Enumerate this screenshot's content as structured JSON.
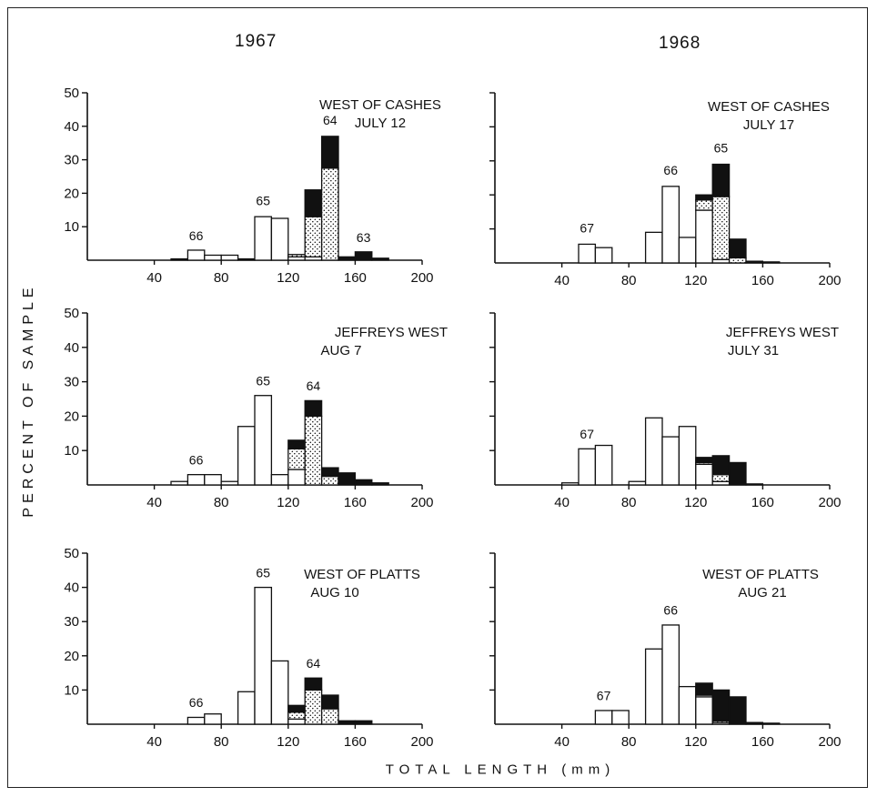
{
  "figure": {
    "ylabel": "PERCENT OF SAMPLE",
    "xlabel": "TOTAL LENGTH (mm)",
    "columns": [
      "1967",
      "1968"
    ]
  },
  "chart_data": [
    {
      "type": "bar",
      "stacked": true,
      "year": "1967",
      "label_line1": "WEST OF CASHES",
      "label_line2": "JULY 12",
      "x_ticks": [
        40,
        80,
        120,
        160,
        200
      ],
      "y_ticks": [
        10,
        20,
        30,
        40,
        50
      ],
      "xlim": [
        0,
        200
      ],
      "ylim": [
        0,
        50
      ],
      "bars": [
        {
          "x": 50,
          "open": 0,
          "dotted": 0,
          "solid": 0.4
        },
        {
          "x": 60,
          "open": 3,
          "dotted": 0,
          "solid": 0
        },
        {
          "x": 70,
          "open": 1.5,
          "dotted": 0,
          "solid": 0
        },
        {
          "x": 80,
          "open": 1.5,
          "dotted": 0,
          "solid": 0
        },
        {
          "x": 90,
          "open": 0,
          "dotted": 0,
          "solid": 0.4
        },
        {
          "x": 100,
          "open": 13,
          "dotted": 0,
          "solid": 0
        },
        {
          "x": 110,
          "open": 12.5,
          "dotted": 0,
          "solid": 0
        },
        {
          "x": 120,
          "open": 1,
          "dotted": 0.7,
          "solid": 0
        },
        {
          "x": 130,
          "open": 1,
          "dotted": 12,
          "solid": 8
        },
        {
          "x": 140,
          "open": 0,
          "dotted": 27.5,
          "solid": 9.5
        },
        {
          "x": 150,
          "open": 0,
          "dotted": 0,
          "solid": 1
        },
        {
          "x": 160,
          "open": 0,
          "dotted": 0,
          "solid": 2.5
        },
        {
          "x": 170,
          "open": 0,
          "dotted": 0,
          "solid": 0.6
        }
      ],
      "annotations": [
        {
          "text": "66",
          "x": 65,
          "y": 6
        },
        {
          "text": "65",
          "x": 105,
          "y": 16.5
        },
        {
          "text": "64",
          "x": 145,
          "y": 40.5
        },
        {
          "text": "63",
          "x": 165,
          "y": 5.5
        }
      ]
    },
    {
      "type": "bar",
      "stacked": true,
      "year": "1968",
      "label_line1": "WEST OF CASHES",
      "label_line2": "JULY 17",
      "x_ticks": [
        40,
        80,
        120,
        160,
        200
      ],
      "y_ticks": [],
      "xlim": [
        0,
        200
      ],
      "ylim": [
        0,
        50
      ],
      "bars": [
        {
          "x": 50,
          "open": 5.5,
          "dotted": 0,
          "solid": 0
        },
        {
          "x": 60,
          "open": 4.5,
          "dotted": 0,
          "solid": 0
        },
        {
          "x": 90,
          "open": 9,
          "dotted": 0,
          "solid": 0
        },
        {
          "x": 100,
          "open": 22.5,
          "dotted": 0,
          "solid": 0
        },
        {
          "x": 110,
          "open": 7.5,
          "dotted": 0,
          "solid": 0
        },
        {
          "x": 120,
          "open": 15.5,
          "dotted": 3,
          "solid": 1.5
        },
        {
          "x": 130,
          "open": 1,
          "dotted": 18.5,
          "solid": 9.5
        },
        {
          "x": 140,
          "open": 0,
          "dotted": 1.5,
          "solid": 5.5
        },
        {
          "x": 150,
          "open": 0,
          "dotted": 0,
          "solid": 0.5
        },
        {
          "x": 160,
          "open": 0,
          "dotted": 0,
          "solid": 0.3
        }
      ],
      "annotations": [
        {
          "text": "67",
          "x": 55,
          "y": 9
        },
        {
          "text": "66",
          "x": 105,
          "y": 26
        },
        {
          "text": "65",
          "x": 135,
          "y": 32.5
        }
      ]
    },
    {
      "type": "bar",
      "stacked": true,
      "year": "1967",
      "label_line1": "JEFFREYS WEST",
      "label_line2": "AUG 7",
      "x_ticks": [
        40,
        80,
        120,
        160,
        200
      ],
      "y_ticks": [
        10,
        20,
        30,
        40,
        50
      ],
      "xlim": [
        0,
        200
      ],
      "ylim": [
        0,
        50
      ],
      "bars": [
        {
          "x": 50,
          "open": 1,
          "dotted": 0,
          "solid": 0
        },
        {
          "x": 60,
          "open": 3,
          "dotted": 0,
          "solid": 0
        },
        {
          "x": 70,
          "open": 3,
          "dotted": 0,
          "solid": 0
        },
        {
          "x": 80,
          "open": 1,
          "dotted": 0,
          "solid": 0
        },
        {
          "x": 90,
          "open": 17,
          "dotted": 0,
          "solid": 0
        },
        {
          "x": 100,
          "open": 26,
          "dotted": 0,
          "solid": 0
        },
        {
          "x": 110,
          "open": 3,
          "dotted": 0,
          "solid": 0
        },
        {
          "x": 120,
          "open": 4.5,
          "dotted": 6,
          "solid": 2.5
        },
        {
          "x": 130,
          "open": 0,
          "dotted": 20,
          "solid": 4.5
        },
        {
          "x": 140,
          "open": 0,
          "dotted": 2.5,
          "solid": 2.5
        },
        {
          "x": 150,
          "open": 0,
          "dotted": 0,
          "solid": 3.5
        },
        {
          "x": 160,
          "open": 0,
          "dotted": 0,
          "solid": 1.5
        },
        {
          "x": 170,
          "open": 0,
          "dotted": 0,
          "solid": 0.6
        }
      ],
      "annotations": [
        {
          "text": "66",
          "x": 65,
          "y": 6
        },
        {
          "text": "65",
          "x": 105,
          "y": 29
        },
        {
          "text": "64",
          "x": 135,
          "y": 27.5
        }
      ]
    },
    {
      "type": "bar",
      "stacked": true,
      "year": "1968",
      "label_line1": "JEFFREYS WEST",
      "label_line2": "JULY 31",
      "x_ticks": [
        40,
        80,
        120,
        160,
        200
      ],
      "y_ticks": [],
      "xlim": [
        0,
        200
      ],
      "ylim": [
        0,
        50
      ],
      "bars": [
        {
          "x": 40,
          "open": 0.6,
          "dotted": 0,
          "solid": 0
        },
        {
          "x": 50,
          "open": 10.5,
          "dotted": 0,
          "solid": 0
        },
        {
          "x": 60,
          "open": 11.5,
          "dotted": 0,
          "solid": 0
        },
        {
          "x": 80,
          "open": 1,
          "dotted": 0,
          "solid": 0
        },
        {
          "x": 90,
          "open": 19.5,
          "dotted": 0,
          "solid": 0
        },
        {
          "x": 100,
          "open": 14,
          "dotted": 0,
          "solid": 0
        },
        {
          "x": 110,
          "open": 17,
          "dotted": 0,
          "solid": 0
        },
        {
          "x": 120,
          "open": 6,
          "dotted": 0.5,
          "solid": 1.5
        },
        {
          "x": 130,
          "open": 1,
          "dotted": 2,
          "solid": 5.5
        },
        {
          "x": 140,
          "open": 0,
          "dotted": 0,
          "solid": 6.5
        },
        {
          "x": 150,
          "open": 0,
          "dotted": 0,
          "solid": 0.3
        }
      ],
      "annotations": [
        {
          "text": "67",
          "x": 55,
          "y": 13.5
        }
      ]
    },
    {
      "type": "bar",
      "stacked": true,
      "year": "1967",
      "label_line1": "WEST OF PLATTS",
      "label_line2": "AUG 10",
      "x_ticks": [
        40,
        80,
        120,
        160,
        200
      ],
      "y_ticks": [
        10,
        20,
        30,
        40,
        50
      ],
      "xlim": [
        0,
        200
      ],
      "ylim": [
        0,
        50
      ],
      "bars": [
        {
          "x": 60,
          "open": 2,
          "dotted": 0,
          "solid": 0
        },
        {
          "x": 70,
          "open": 3,
          "dotted": 0,
          "solid": 0
        },
        {
          "x": 90,
          "open": 9.5,
          "dotted": 0,
          "solid": 0
        },
        {
          "x": 100,
          "open": 40,
          "dotted": 0,
          "solid": 0
        },
        {
          "x": 110,
          "open": 18.5,
          "dotted": 0,
          "solid": 0
        },
        {
          "x": 120,
          "open": 1.5,
          "dotted": 2,
          "solid": 2
        },
        {
          "x": 130,
          "open": 0,
          "dotted": 10,
          "solid": 3.5
        },
        {
          "x": 140,
          "open": 0,
          "dotted": 4.5,
          "solid": 4
        },
        {
          "x": 150,
          "open": 0,
          "dotted": 0,
          "solid": 1
        },
        {
          "x": 160,
          "open": 0,
          "dotted": 0,
          "solid": 1
        }
      ],
      "annotations": [
        {
          "text": "66",
          "x": 65,
          "y": 5
        },
        {
          "text": "65",
          "x": 105,
          "y": 43
        },
        {
          "text": "64",
          "x": 135,
          "y": 16.5
        }
      ]
    },
    {
      "type": "bar",
      "stacked": true,
      "year": "1968",
      "label_line1": "WEST OF PLATTS",
      "label_line2": "AUG 21",
      "x_ticks": [
        40,
        80,
        120,
        160,
        200
      ],
      "y_ticks": [],
      "xlim": [
        0,
        200
      ],
      "ylim": [
        0,
        50
      ],
      "bars": [
        {
          "x": 60,
          "open": 4,
          "dotted": 0,
          "solid": 0
        },
        {
          "x": 70,
          "open": 4,
          "dotted": 0,
          "solid": 0
        },
        {
          "x": 90,
          "open": 22,
          "dotted": 0,
          "solid": 0
        },
        {
          "x": 100,
          "open": 29,
          "dotted": 0,
          "solid": 0
        },
        {
          "x": 110,
          "open": 11,
          "dotted": 0,
          "solid": 0
        },
        {
          "x": 120,
          "open": 8,
          "dotted": 0.5,
          "solid": 3.5
        },
        {
          "x": 130,
          "open": 0.5,
          "dotted": 0.5,
          "solid": 9
        },
        {
          "x": 140,
          "open": 0,
          "dotted": 0,
          "solid": 8
        },
        {
          "x": 150,
          "open": 0,
          "dotted": 0,
          "solid": 0.5
        },
        {
          "x": 160,
          "open": 0,
          "dotted": 0,
          "solid": 0.3
        }
      ],
      "annotations": [
        {
          "text": "67",
          "x": 65,
          "y": 7
        },
        {
          "text": "66",
          "x": 105,
          "y": 32
        }
      ]
    }
  ]
}
